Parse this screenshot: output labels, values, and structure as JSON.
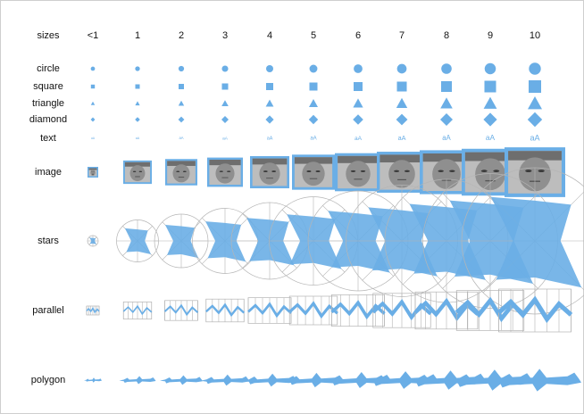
{
  "header_label": "sizes",
  "size_labels": [
    "<1",
    "1",
    "2",
    "3",
    "4",
    "5",
    "6",
    "7",
    "8",
    "9",
    "10"
  ],
  "rows": [
    {
      "key": "circle",
      "label": "circle"
    },
    {
      "key": "square",
      "label": "square"
    },
    {
      "key": "triangle",
      "label": "triangle"
    },
    {
      "key": "diamond",
      "label": "diamond"
    },
    {
      "key": "text",
      "label": "text",
      "glyph_text": "aA"
    },
    {
      "key": "image",
      "label": "image",
      "image_subject": "grayscale-face-photo"
    },
    {
      "key": "stars",
      "label": "stars"
    },
    {
      "key": "parallel",
      "label": "parallel"
    },
    {
      "key": "polygon",
      "label": "polygon"
    }
  ],
  "colors": {
    "glyph_fill": "#6aaee6",
    "grid_stroke": "#b5b5b5",
    "label_text": "#111111",
    "frame_border": "#cfcfcf"
  }
}
